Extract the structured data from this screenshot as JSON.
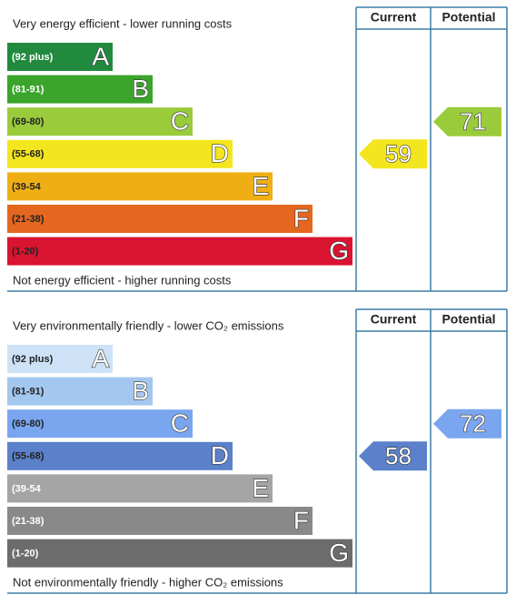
{
  "panels": [
    {
      "top_text": "Very energy efficient - lower running costs",
      "bottom_text": "Not energy efficient - higher running costs",
      "headers": [
        "Current",
        "Potential"
      ],
      "bands": [
        {
          "range": "(92 plus)",
          "letter": "A",
          "color": "#218a3f",
          "text_color": "#ffffff"
        },
        {
          "range": "(81-91)",
          "letter": "B",
          "color": "#3aa42b",
          "text_color": "#ffffff"
        },
        {
          "range": "(69-80)",
          "letter": "C",
          "color": "#9acb3a",
          "text_color": "#222222"
        },
        {
          "range": "(55-68)",
          "letter": "D",
          "color": "#f3e61e",
          "text_color": "#222222"
        },
        {
          "range": "(39-54",
          "letter": "E",
          "color": "#efaf14",
          "text_color": "#222222"
        },
        {
          "range": "(21-38)",
          "letter": "F",
          "color": "#e5671f",
          "text_color": "#222222"
        },
        {
          "range": "(1-20)",
          "letter": "G",
          "color": "#d91430",
          "text_color": "#222222"
        }
      ],
      "current": 59,
      "potential": 71
    },
    {
      "top_text": "Very environmentally friendly - lower CO₂ emissions",
      "bottom_text": "Not environmentally friendly - higher CO₂ emissions",
      "headers": [
        "Current",
        "Potential"
      ],
      "bands": [
        {
          "range": "(92 plus)",
          "letter": "A",
          "color": "#cde2f6",
          "text_color": "#222222"
        },
        {
          "range": "(81-91)",
          "letter": "B",
          "color": "#a4c7ef",
          "text_color": "#222222"
        },
        {
          "range": "(69-80)",
          "letter": "C",
          "color": "#79a6ee",
          "text_color": "#222222"
        },
        {
          "range": "(55-68)",
          "letter": "D",
          "color": "#5a81ca",
          "text_color": "#222222"
        },
        {
          "range": "(39-54",
          "letter": "E",
          "color": "#a5a5a5",
          "text_color": "#ffffff"
        },
        {
          "range": "(21-38)",
          "letter": "F",
          "color": "#898989",
          "text_color": "#ffffff"
        },
        {
          "range": "(1-20)",
          "letter": "G",
          "color": "#6c6c6c",
          "text_color": "#ffffff"
        }
      ],
      "current": 58,
      "potential": 72
    }
  ]
}
